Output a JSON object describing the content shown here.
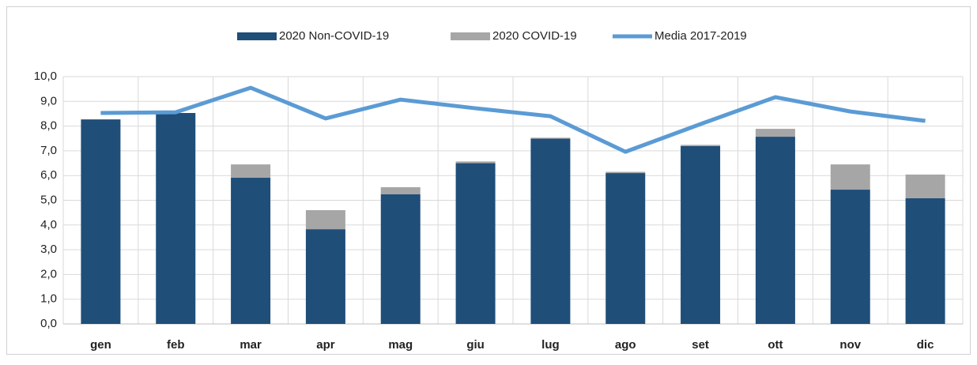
{
  "chart_data": {
    "type": "bar",
    "stacked": true,
    "categories": [
      "gen",
      "feb",
      "mar",
      "apr",
      "mag",
      "giu",
      "lug",
      "ago",
      "set",
      "ott",
      "nov",
      "dic"
    ],
    "series": [
      {
        "name": "2020 Non-COVID-19",
        "color": "#1f4e79",
        "values": [
          8.27,
          8.53,
          5.91,
          3.83,
          5.24,
          6.5,
          7.49,
          6.1,
          7.19,
          7.57,
          5.43,
          5.08
        ]
      },
      {
        "name": "2020 COVID-19",
        "color": "#a6a6a6",
        "values": [
          0,
          0,
          0.54,
          0.77,
          0.29,
          0.07,
          0.04,
          0.05,
          0.05,
          0.32,
          1.02,
          0.96
        ]
      },
      {
        "name": "Media 2017-2019",
        "type": "line",
        "color": "#5b9bd5",
        "values": [
          8.53,
          8.56,
          9.55,
          8.31,
          9.07,
          8.72,
          8.4,
          6.96,
          8.08,
          9.17,
          8.59,
          8.21
        ]
      }
    ],
    "ylim": [
      0,
      10
    ],
    "yticks": [
      {
        "value": 0,
        "label": "0,0"
      },
      {
        "value": 1,
        "label": "1,0"
      },
      {
        "value": 2,
        "label": "2,0"
      },
      {
        "value": 3,
        "label": "3,0"
      },
      {
        "value": 4,
        "label": "4,0"
      },
      {
        "value": 5,
        "label": "5,0"
      },
      {
        "value": 6,
        "label": "6,0"
      },
      {
        "value": 7,
        "label": "7,0"
      },
      {
        "value": 8,
        "label": "8,0"
      },
      {
        "value": 9,
        "label": "9,0"
      },
      {
        "value": 10,
        "label": "10,0"
      }
    ],
    "grid": true,
    "legend": "top"
  }
}
